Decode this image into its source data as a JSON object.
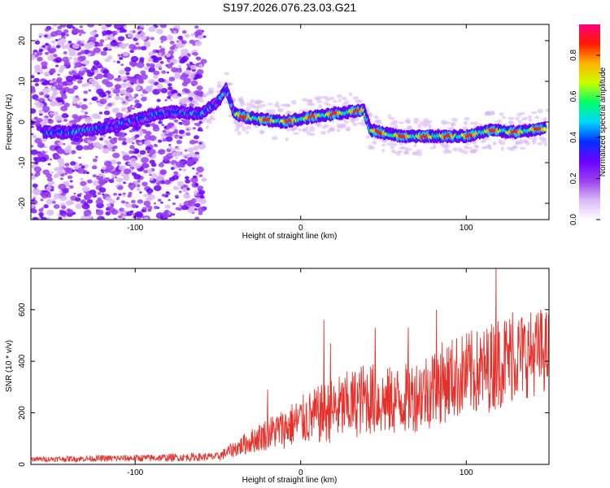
{
  "title": "S197.2026.076.23.03.G21",
  "colors": {
    "snr_line": "#e8302a",
    "frame": "#000000",
    "colormap": [
      "#ffffff",
      "#d9b8f5",
      "#9b3ff0",
      "#6a00ff",
      "#0030ff",
      "#00d7ff",
      "#00ff6a",
      "#c8ff00",
      "#ffb400",
      "#ff1a00",
      "#ff0080"
    ]
  },
  "chart_data": [
    {
      "type": "heatmap",
      "xlabel": "Height of straight line (km)",
      "ylabel": "Frequency (Hz)",
      "xlim": [
        -163,
        150
      ],
      "ylim": [
        -24,
        24
      ],
      "xticks": [
        -100,
        0,
        100
      ],
      "xtick_labels": [
        "-100",
        "0",
        "100"
      ],
      "yticks": [
        20,
        10,
        0,
        -10,
        -20
      ],
      "ytick_labels": [
        "20",
        "10",
        "0",
        "-10",
        "-20"
      ],
      "ridge": {
        "x": [
          -140,
          -120,
          -100,
          -80,
          -60,
          -50,
          -45,
          -40,
          -30,
          -10,
          10,
          30,
          38,
          42,
          60,
          80,
          100,
          115,
          130,
          148
        ],
        "y": [
          -2.5,
          -1.5,
          0.5,
          2.5,
          2,
          5,
          8,
          2,
          1,
          0,
          1.5,
          2.5,
          3,
          -2,
          -3.5,
          -3.5,
          -3.5,
          -2,
          -2.5,
          -1.5
        ]
      },
      "colorbar": {
        "label": "Normalized spectral amplitude",
        "range": [
          0.0,
          0.95
        ],
        "ticks": [
          0.0,
          0.2,
          0.4,
          0.6,
          0.8
        ],
        "tick_labels": [
          "0.0",
          "0.2",
          "0.4",
          "0.6",
          "0.8"
        ]
      }
    },
    {
      "type": "line",
      "xlabel": "Height of straight line (km)",
      "ylabel": "SNR (10 * v/v)",
      "xlim": [
        -163,
        150
      ],
      "ylim": [
        0,
        760
      ],
      "xticks": [
        -100,
        0,
        100
      ],
      "xtick_labels": [
        "-100",
        "0",
        "100"
      ],
      "yticks": [
        0,
        200,
        400,
        600
      ],
      "ytick_labels": [
        "0",
        "200",
        "400",
        "600"
      ],
      "series": [
        {
          "name": "SNR",
          "envelope_x": [
            -163,
            -90,
            -50,
            -40,
            -30,
            -20,
            -10,
            0,
            10,
            20,
            30,
            40,
            50,
            60,
            70,
            80,
            90,
            100,
            110,
            120,
            130,
            140,
            150
          ],
          "envelope_mean": [
            20,
            25,
            30,
            60,
            90,
            120,
            140,
            170,
            190,
            210,
            230,
            260,
            240,
            250,
            270,
            300,
            330,
            350,
            360,
            400,
            420,
            430,
            440
          ],
          "envelope_spread": [
            12,
            18,
            20,
            40,
            60,
            80,
            100,
            120,
            140,
            160,
            170,
            180,
            170,
            170,
            180,
            200,
            200,
            210,
            210,
            230,
            220,
            210,
            200
          ],
          "peaks": [
            {
              "x": -20,
              "y": 290
            },
            {
              "x": 14,
              "y": 560
            },
            {
              "x": 18,
              "y": 470
            },
            {
              "x": 45,
              "y": 530
            },
            {
              "x": 65,
              "y": 530
            },
            {
              "x": 82,
              "y": 600
            },
            {
              "x": 118,
              "y": 760
            },
            {
              "x": 128,
              "y": 590
            },
            {
              "x": 145,
              "y": 600
            }
          ]
        }
      ]
    }
  ]
}
